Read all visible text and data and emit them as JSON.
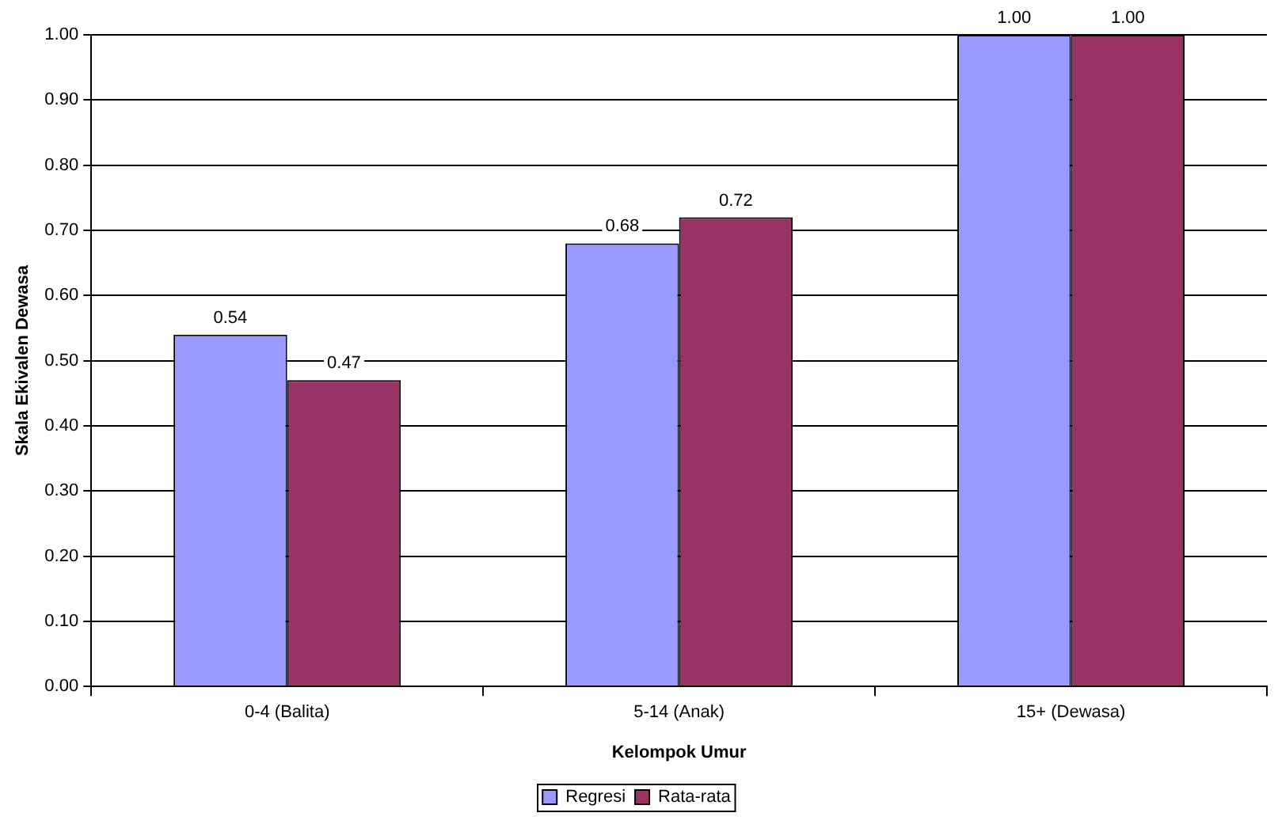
{
  "chart_data": {
    "type": "bar",
    "xlabel": "Kelompok Umur",
    "ylabel": "Skala Ekivalen Dewasa",
    "categories": [
      "0-4 (Balita)",
      "5-14 (Anak)",
      "15+ (Dewasa)"
    ],
    "series": [
      {
        "name": "Regresi",
        "color": "#9999ff",
        "values": [
          0.54,
          0.68,
          1.0
        ],
        "value_labels": [
          "0.54",
          "0.68",
          "1.00"
        ]
      },
      {
        "name": "Rata-rata",
        "color": "#993366",
        "values": [
          0.47,
          0.72,
          1.0
        ],
        "value_labels": [
          "0.47",
          "0.72",
          "1.00"
        ]
      }
    ],
    "ylim": [
      0,
      1
    ],
    "yticks": [
      {
        "value": 0,
        "label": "0.00"
      },
      {
        "value": 0.1,
        "label": "0.10"
      },
      {
        "value": 0.2,
        "label": "0.20"
      },
      {
        "value": 0.3,
        "label": "0.30"
      },
      {
        "value": 0.4,
        "label": "0.40"
      },
      {
        "value": 0.5,
        "label": "0.50"
      },
      {
        "value": 0.6,
        "label": "0.60"
      },
      {
        "value": 0.7,
        "label": "0.70"
      },
      {
        "value": 0.8,
        "label": "0.80"
      },
      {
        "value": 0.9,
        "label": "0.90"
      },
      {
        "value": 1,
        "label": "1.00"
      }
    ],
    "grid": "y",
    "legend": "bottom"
  }
}
